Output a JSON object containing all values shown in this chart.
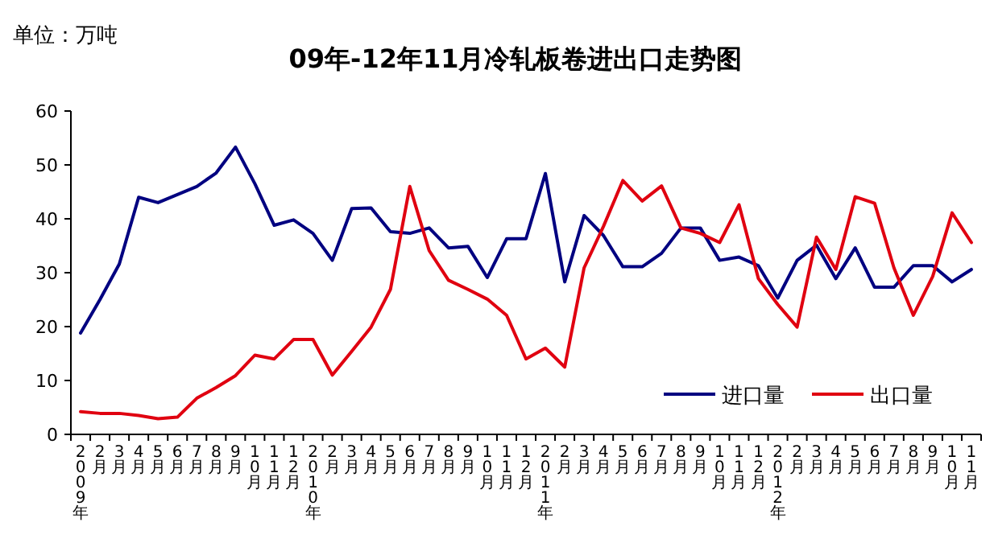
{
  "chart_data": {
    "type": "line",
    "title": "09年-12年11月冷轧板卷进出口走势图",
    "annotations": [
      "单位：万吨"
    ],
    "categories": [
      "2009年",
      "2月",
      "3月",
      "4月",
      "5月",
      "6月",
      "7月",
      "8月",
      "9月",
      "10月",
      "11月",
      "12月",
      "2010年",
      "2月",
      "3月",
      "4月",
      "5月",
      "6月",
      "7月",
      "8月",
      "9月",
      "10月",
      "11月",
      "12月",
      "2011年",
      "2月",
      "3月",
      "4月",
      "5月",
      "6月",
      "7月",
      "8月",
      "9月",
      "10月",
      "11月",
      "12月",
      "2012年",
      "2月",
      "3月",
      "4月",
      "5月",
      "6月",
      "7月",
      "8月",
      "9月",
      "10月",
      "11月"
    ],
    "series": [
      {
        "name": "进口量",
        "color": "#000080",
        "values": [
          18.8,
          25,
          31.6,
          44,
          43,
          44.5,
          46,
          48.5,
          53.3,
          46.5,
          38.8,
          39.8,
          37.3,
          32.3,
          41.9,
          42,
          37.6,
          37.3,
          38.3,
          34.6,
          34.9,
          29.1,
          36.3,
          36.3,
          48.4,
          28.3,
          40.6,
          36.9,
          31.1,
          31.1,
          33.6,
          38.3,
          38.3,
          32.3,
          32.9,
          31.3,
          25.3,
          32.3,
          35.1,
          28.9,
          34.6,
          27.3,
          27.3,
          31.3,
          31.3,
          28.3,
          30.6
        ]
      },
      {
        "name": "出口量",
        "color": "#e00010",
        "values": [
          4.2,
          3.9,
          3.9,
          3.5,
          2.9,
          3.2,
          6.7,
          8.7,
          10.9,
          14.7,
          14,
          17.6,
          17.6,
          11,
          15.4,
          19.9,
          26.9,
          46,
          34.1,
          28.6,
          26.9,
          25.1,
          22.1,
          14,
          16,
          12.5,
          30.9,
          38.6,
          47.1,
          43.3,
          46.1,
          38.3,
          37.3,
          35.6,
          42.6,
          28.9,
          24.1,
          19.9,
          36.6,
          30.6,
          44.1,
          42.9,
          30.9,
          22.1,
          29.3,
          41.1,
          35.6
        ]
      }
    ],
    "ylim": [
      0,
      60
    ],
    "yticks": [
      0,
      10,
      20,
      30,
      40,
      50,
      60
    ],
    "grid": false,
    "legend": "bottom right",
    "marker": "none",
    "line_style": "solid"
  }
}
